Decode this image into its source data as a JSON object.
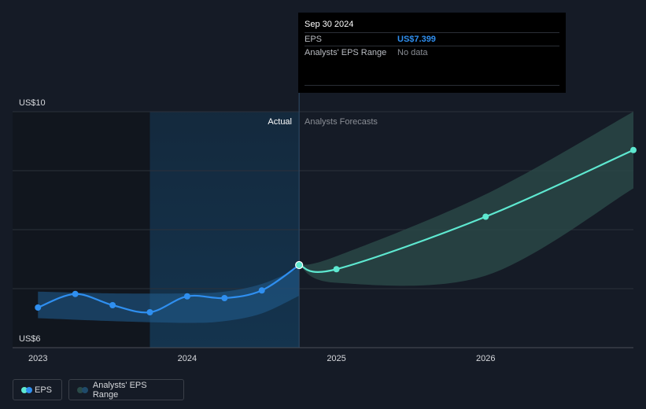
{
  "tooltip": {
    "date": "Sep 30 2024",
    "eps_label": "EPS",
    "eps_value": "US$7.399",
    "range_label": "Analysts' EPS Range",
    "range_value": "No data"
  },
  "regions": {
    "actual_label": "Actual",
    "forecast_label": "Analysts Forecasts"
  },
  "legend": {
    "eps": "EPS",
    "range": "Analysts' EPS Range"
  },
  "colors": {
    "eps_actual": "#2f8ff0",
    "eps_forecast": "#5ee8d0",
    "range_forecast": "#2a4a48",
    "past_highlight": "#143550",
    "background": "#151b26"
  },
  "chart_data": {
    "type": "line",
    "y_tick_labels": [
      "US$10",
      "US$6"
    ],
    "ylim": [
      6,
      10
    ],
    "x_ticks": [
      {
        "label": "2023",
        "x": 2023.0
      },
      {
        "label": "2024",
        "x": 2024.0
      },
      {
        "label": "2025",
        "x": 2025.0
      },
      {
        "label": "2026",
        "x": 2026.0
      }
    ],
    "xlim": [
      2022.83,
      2026.99
    ],
    "actual_cutoff": 2024.75,
    "past_shade_start": 2023.75,
    "grid": true,
    "legend_placement": "bottom-left",
    "series": [
      {
        "role": "eps_actual",
        "x": [
          2023.0,
          2023.25,
          2023.5,
          2023.75,
          2024.0,
          2024.25,
          2024.5,
          2024.75
        ],
        "y": [
          6.68,
          6.91,
          6.72,
          6.6,
          6.87,
          6.84,
          6.97,
          7.4
        ]
      },
      {
        "role": "eps_forecast",
        "x": [
          2024.75,
          2025.0,
          2026.0,
          2026.99
        ],
        "y": [
          7.4,
          7.33,
          8.22,
          9.35
        ]
      }
    ],
    "ranges": [
      {
        "role": "range_past",
        "x": [
          2023.0,
          2023.5,
          2024.0,
          2024.25,
          2024.5,
          2024.75
        ],
        "high": [
          6.95,
          6.92,
          6.92,
          6.95,
          7.08,
          7.35
        ],
        "low": [
          6.5,
          6.45,
          6.42,
          6.45,
          6.58,
          6.88
        ]
      },
      {
        "role": "range_forecast",
        "x": [
          2024.75,
          2025.0,
          2026.0,
          2026.99
        ],
        "high": [
          7.4,
          7.55,
          8.6,
          10.0
        ],
        "low": [
          7.4,
          7.1,
          7.22,
          8.7
        ]
      }
    ]
  }
}
